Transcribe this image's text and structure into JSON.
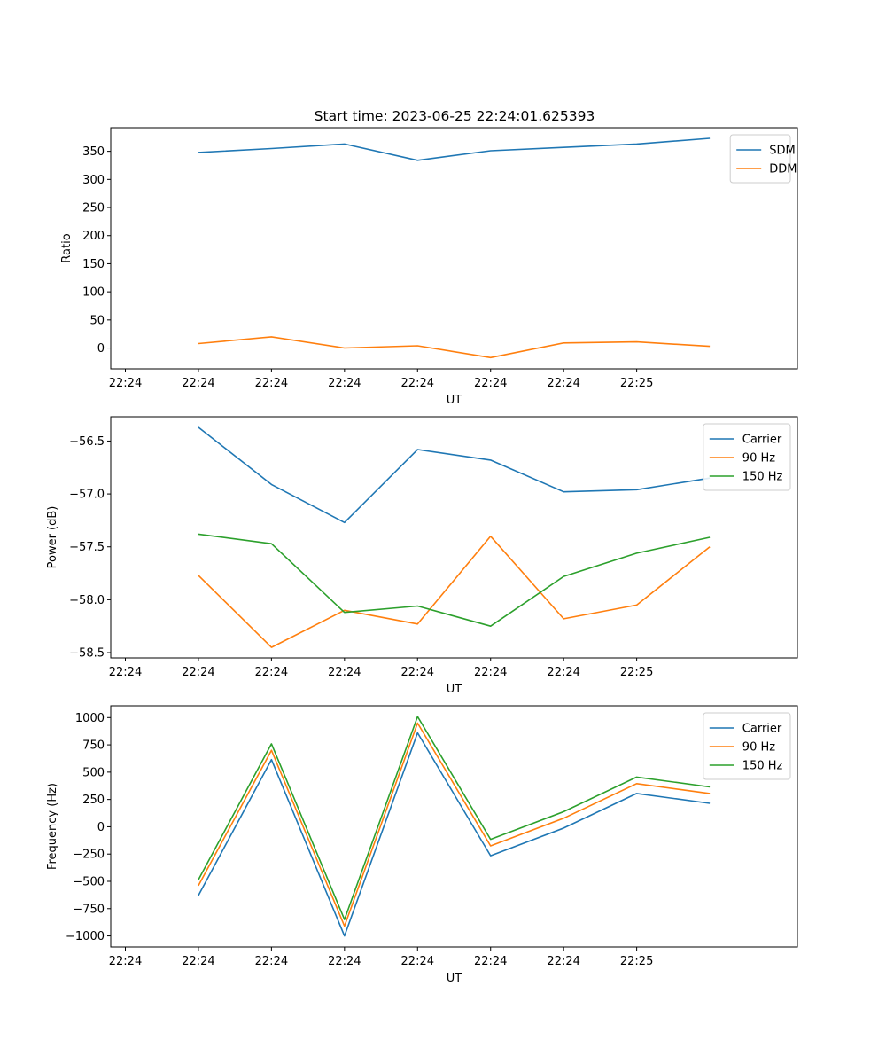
{
  "figure_title": "Start time: 2023-06-25 22:24:01.625393",
  "colors": {
    "series1": "#1f77b4",
    "series2": "#ff7f0e",
    "series3": "#2ca02c"
  },
  "chart_data": [
    {
      "type": "line",
      "title": "Start time: 2023-06-25 22:24:01.625393",
      "xlabel": "UT",
      "ylabel": "Ratio",
      "x_tick_labels": [
        "22:24",
        "22:24",
        "22:24",
        "22:24",
        "22:24",
        "22:24",
        "22:24",
        "22:25"
      ],
      "x": [
        0.5,
        1,
        1.5,
        2,
        2.5,
        3,
        3.5,
        4
      ],
      "xlim": [
        -0.1,
        4.6
      ],
      "ylim": [
        -37,
        392
      ],
      "y_ticks": [
        0,
        50,
        100,
        150,
        200,
        250,
        300,
        350
      ],
      "legend_position": "top-right",
      "grid": false,
      "series": [
        {
          "name": "SDM",
          "color": "#1f77b4",
          "values": [
            348,
            355,
            363,
            334,
            351,
            357,
            363,
            373
          ]
        },
        {
          "name": "DDM",
          "color": "#ff7f0e",
          "values": [
            8,
            20,
            0,
            4,
            -17,
            9,
            11,
            3
          ]
        }
      ]
    },
    {
      "type": "line",
      "title": "",
      "xlabel": "UT",
      "ylabel": "Power (dB)",
      "x_tick_labels": [
        "22:24",
        "22:24",
        "22:24",
        "22:24",
        "22:24",
        "22:24",
        "22:24",
        "22:25"
      ],
      "x": [
        0.5,
        1,
        1.5,
        2,
        2.5,
        3,
        3.5,
        4
      ],
      "xlim": [
        -0.1,
        4.6
      ],
      "ylim": [
        -58.55,
        -56.27
      ],
      "y_ticks": [
        -58.5,
        -58.0,
        -57.5,
        -57.0,
        -56.5
      ],
      "legend_position": "top-right",
      "grid": false,
      "series": [
        {
          "name": "Carrier",
          "color": "#1f77b4",
          "values": [
            -56.37,
            -56.91,
            -57.27,
            -56.58,
            -56.68,
            -56.98,
            -56.96,
            -56.85
          ]
        },
        {
          "name": "90 Hz",
          "color": "#ff7f0e",
          "values": [
            -57.77,
            -58.45,
            -58.1,
            -58.23,
            -57.4,
            -58.18,
            -58.05,
            -57.5
          ]
        },
        {
          "name": "150 Hz",
          "color": "#2ca02c",
          "values": [
            -57.38,
            -57.47,
            -58.12,
            -58.06,
            -58.25,
            -57.78,
            -57.56,
            -57.41
          ]
        }
      ]
    },
    {
      "type": "line",
      "title": "",
      "xlabel": "UT",
      "ylabel": "Frequency (Hz)",
      "x_tick_labels": [
        "22:24",
        "22:24",
        "22:24",
        "22:24",
        "22:24",
        "22:24",
        "22:24",
        "22:25"
      ],
      "x": [
        0.5,
        1,
        1.5,
        2,
        2.5,
        3,
        3.5,
        4
      ],
      "xlim": [
        -0.1,
        4.6
      ],
      "ylim": [
        -1101,
        1108
      ],
      "y_ticks": [
        -1000,
        -750,
        -500,
        -250,
        0,
        250,
        500,
        750,
        1000
      ],
      "legend_position": "top-right",
      "grid": false,
      "series": [
        {
          "name": "Carrier",
          "color": "#1f77b4",
          "values": [
            -630,
            615,
            -1000,
            860,
            -265,
            -12,
            305,
            215
          ]
        },
        {
          "name": "90 Hz",
          "color": "#ff7f0e",
          "values": [
            -540,
            700,
            -910,
            950,
            -175,
            78,
            395,
            305
          ]
        },
        {
          "name": "150 Hz",
          "color": "#2ca02c",
          "values": [
            -485,
            760,
            -850,
            1010,
            -115,
            138,
            455,
            365
          ]
        }
      ]
    }
  ]
}
